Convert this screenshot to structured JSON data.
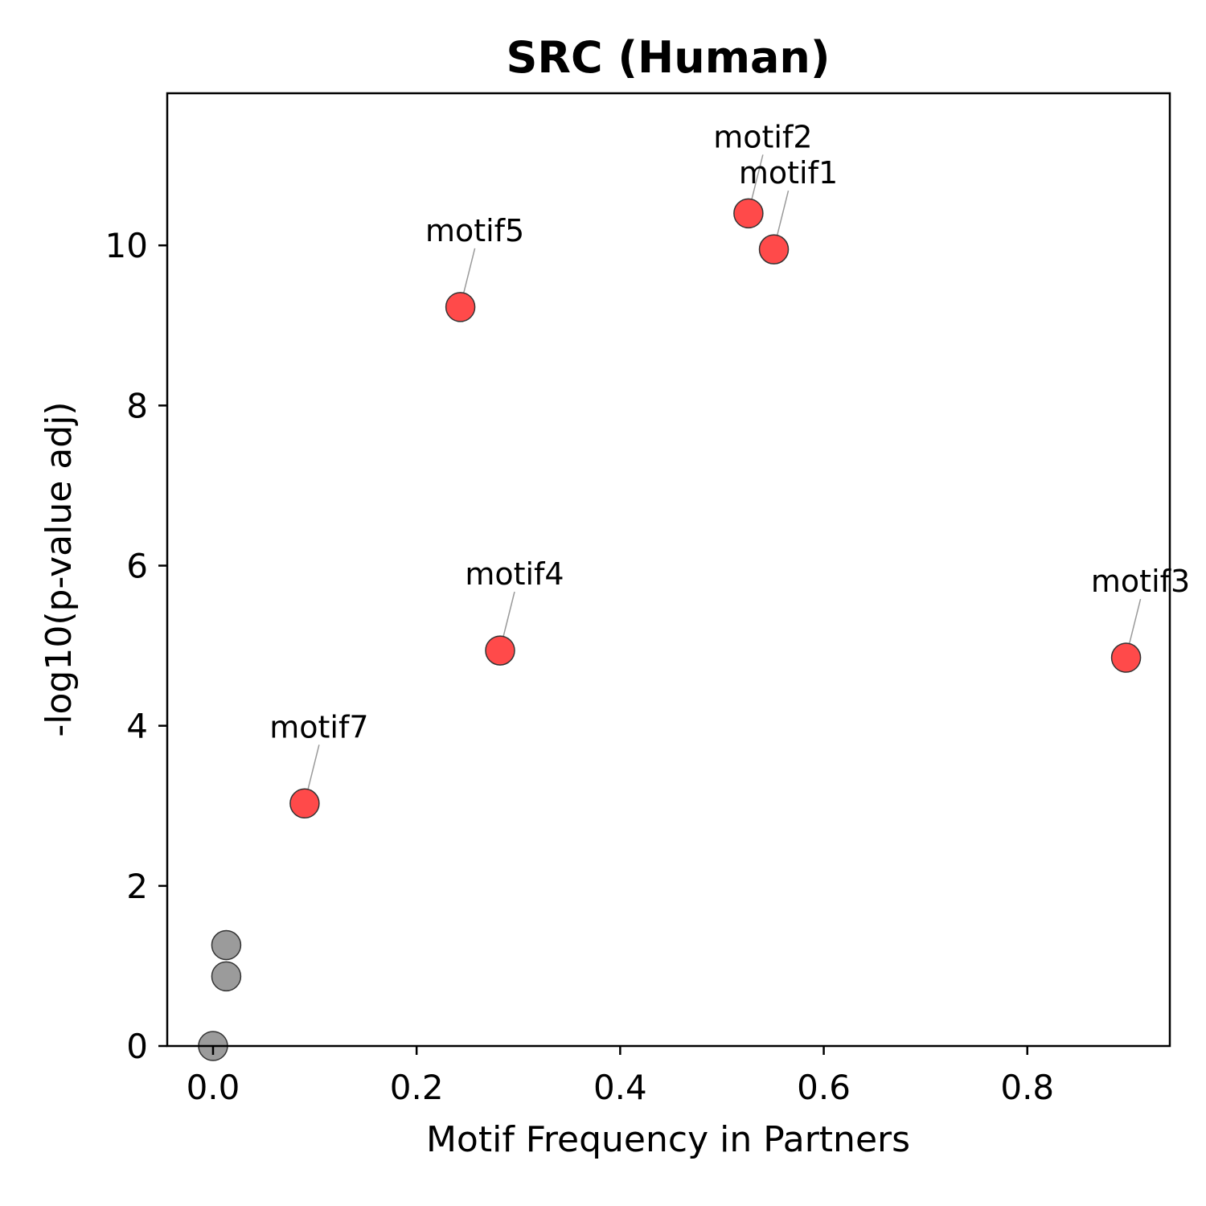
{
  "chart_data": {
    "type": "scatter",
    "title": "SRC (Human)",
    "xlabel": "Motif Frequency in Partners",
    "ylabel": "-log10(p-value adj)",
    "xlim": [
      -0.045,
      0.94
    ],
    "ylim": [
      0,
      11.9
    ],
    "xticks": [
      0.0,
      0.2,
      0.4,
      0.6,
      0.8
    ],
    "yticks": [
      0,
      2,
      4,
      6,
      8,
      10
    ],
    "grid": false,
    "colors": {
      "significant": "#ff4a4a",
      "nonsignificant": "#9b9b9b",
      "edge": "#333333",
      "leader": "#999999"
    },
    "points": [
      {
        "x": 0.0,
        "y": 0.0,
        "label": "",
        "significant": false
      },
      {
        "x": 0.013,
        "y": 0.87,
        "label": "",
        "significant": false
      },
      {
        "x": 0.013,
        "y": 1.26,
        "label": "",
        "significant": false
      },
      {
        "x": 0.09,
        "y": 3.03,
        "label": "motif7",
        "significant": true
      },
      {
        "x": 0.243,
        "y": 9.23,
        "label": "motif5",
        "significant": true
      },
      {
        "x": 0.282,
        "y": 4.94,
        "label": "motif4",
        "significant": true
      },
      {
        "x": 0.526,
        "y": 10.4,
        "label": "motif2",
        "significant": true
      },
      {
        "x": 0.551,
        "y": 9.95,
        "label": "motif1",
        "significant": true
      },
      {
        "x": 0.897,
        "y": 4.85,
        "label": "motif3",
        "significant": true
      }
    ]
  }
}
